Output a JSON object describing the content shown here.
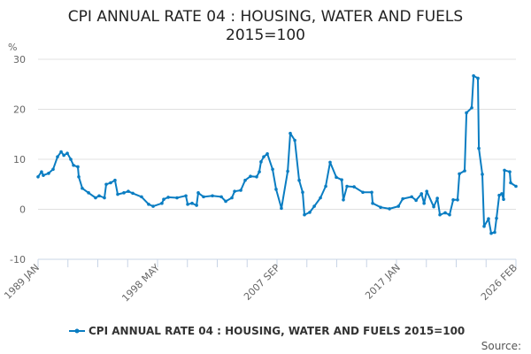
{
  "chart_data": {
    "type": "line",
    "title": [
      "CPI ANNUAL RATE 04 : HOUSING, WATER AND FUELS",
      "2015=100"
    ],
    "ylabel": "%",
    "xlabel": "",
    "ylim": [
      -10,
      30
    ],
    "yticks": [
      30,
      20,
      10,
      0,
      -10
    ],
    "xlim": [
      1989.0,
      2026.08
    ],
    "xticks": [
      {
        "label": "1989 JAN",
        "x": 1989.0
      },
      {
        "label": "1998 MAY",
        "x": 1998.33
      },
      {
        "label": "2007 SEP",
        "x": 2007.67
      },
      {
        "label": "2017 JAN",
        "x": 2017.0
      },
      {
        "label": "2026 FEB",
        "x": 2026.08
      }
    ],
    "grid": true,
    "legend_position": "bottom",
    "series": [
      {
        "name": "CPI ANNUAL RATE 04 : HOUSING, WATER AND FUELS 2015=100",
        "color": "#0a7dc2",
        "x": [
          1989.0,
          1989.27,
          1989.41,
          1989.82,
          1990.17,
          1990.51,
          1990.79,
          1991.0,
          1991.27,
          1991.54,
          1991.75,
          1992.09,
          1992.16,
          1992.43,
          1992.92,
          1993.46,
          1993.74,
          1994.15,
          1994.29,
          1994.63,
          1994.97,
          1995.18,
          1995.66,
          1996.0,
          1996.35,
          1997.03,
          1997.58,
          1997.93,
          1998.61,
          1998.75,
          1999.1,
          1999.78,
          2000.47,
          2000.61,
          2000.95,
          2001.3,
          2001.43,
          2001.84,
          2002.53,
          2003.22,
          2003.56,
          2004.04,
          2004.25,
          2004.73,
          2005.07,
          2005.48,
          2005.96,
          2006.17,
          2006.3,
          2006.51,
          2006.79,
          2007.2,
          2007.47,
          2007.88,
          2008.37,
          2008.57,
          2008.92,
          2009.26,
          2009.53,
          2009.67,
          2010.08,
          2010.43,
          2010.91,
          2011.32,
          2011.66,
          2012.14,
          2012.56,
          2012.69,
          2012.97,
          2013.52,
          2014.2,
          2014.89,
          2014.96,
          2015.58,
          2016.27,
          2016.96,
          2017.3,
          2017.99,
          2018.33,
          2018.75,
          2018.95,
          2019.16,
          2019.7,
          2019.98,
          2020.18,
          2020.59,
          2020.93,
          2021.21,
          2021.55,
          2021.69,
          2022.1,
          2022.24,
          2022.65,
          2022.79,
          2023.13,
          2023.2,
          2023.47,
          2023.61,
          2023.95,
          2024.16,
          2024.43,
          2024.57,
          2024.78,
          2024.98,
          2025.12,
          2025.19,
          2025.6,
          2025.67,
          2026.08
        ],
        "values": [
          6.5,
          7.5,
          6.8,
          7.2,
          8.0,
          10.5,
          11.5,
          10.8,
          11.2,
          10.0,
          8.8,
          8.5,
          6.5,
          4.2,
          3.3,
          2.3,
          2.7,
          2.3,
          5.0,
          5.3,
          5.8,
          3.0,
          3.3,
          3.6,
          3.2,
          2.5,
          1.0,
          0.6,
          1.2,
          2.0,
          2.4,
          2.3,
          2.7,
          1.0,
          1.2,
          0.8,
          3.3,
          2.5,
          2.7,
          2.5,
          1.6,
          2.3,
          3.6,
          3.8,
          5.8,
          6.6,
          6.5,
          7.5,
          9.5,
          10.5,
          11.1,
          8.0,
          4.0,
          0.2,
          7.6,
          15.2,
          13.8,
          5.8,
          3.4,
          -1.1,
          -0.6,
          0.6,
          2.3,
          4.6,
          9.4,
          6.4,
          5.9,
          1.9,
          4.6,
          4.5,
          3.4,
          3.4,
          1.2,
          0.4,
          0.1,
          0.6,
          2.1,
          2.5,
          1.8,
          3.1,
          1.2,
          3.6,
          0.5,
          2.2,
          -1.1,
          -0.7,
          -1.1,
          1.9,
          1.9,
          7.1,
          7.7,
          19.3,
          20.3,
          26.7,
          26.2,
          12.2,
          7.0,
          -3.4,
          -1.9,
          -4.8,
          -4.6,
          -1.8,
          2.8,
          3.1,
          2.0,
          7.8,
          7.5,
          5.3,
          4.6
        ]
      }
    ],
    "source_label": "Source:"
  }
}
